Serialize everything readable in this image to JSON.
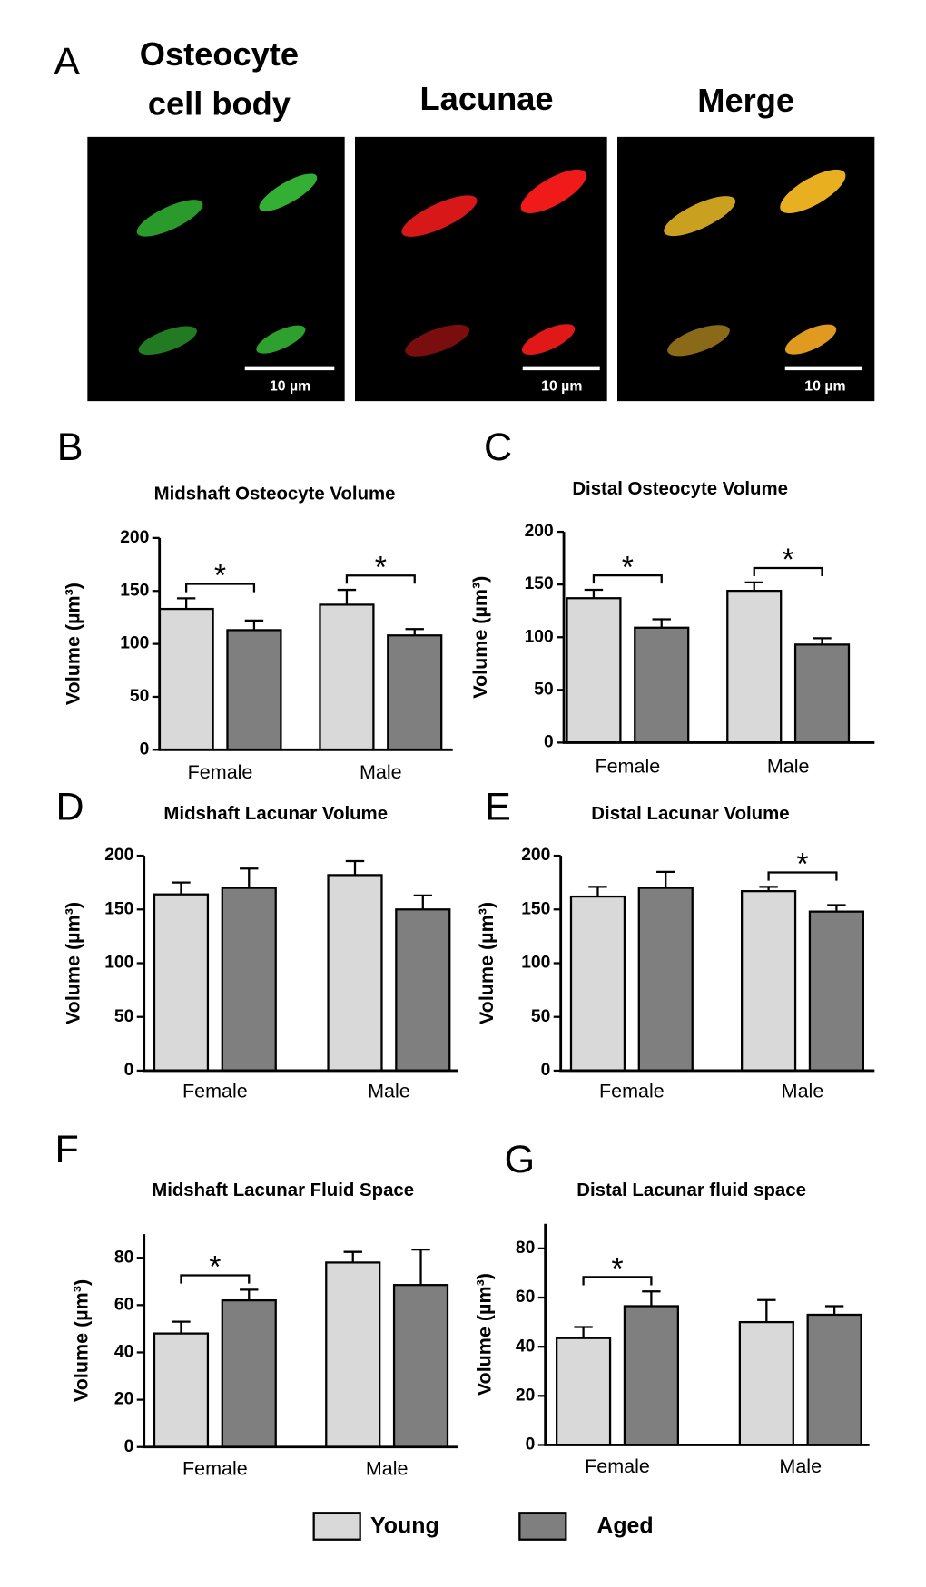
{
  "panel_a": {
    "label": "A",
    "headers": [
      [
        "Osteocyte",
        "cell body"
      ],
      [
        "Lacunae"
      ],
      [
        "Merge"
      ]
    ],
    "scale_bar": "10 µm"
  },
  "chart_data": [
    {
      "type": "bar",
      "panel_label": "B",
      "title": "Midshaft Osteocyte Volume",
      "y_label": "Volume (µm³)",
      "categories": [
        "Female",
        "Male"
      ],
      "series": [
        {
          "color": "#d9d9d9",
          "values": [
            133,
            137
          ],
          "errors": [
            10,
            14
          ]
        },
        {
          "color": "#7f7f7f",
          "values": [
            113,
            108
          ],
          "errors": [
            9,
            6
          ]
        }
      ],
      "significance": [
        "*",
        "*"
      ],
      "ylim": [
        0,
        200
      ],
      "yticks": [
        0,
        50,
        100,
        150,
        200
      ]
    },
    {
      "type": "bar",
      "panel_label": "C",
      "title": "Distal Osteocyte Volume",
      "y_label": "Volume (µm³)",
      "categories": [
        "Female",
        "Male"
      ],
      "series": [
        {
          "color": "#d9d9d9",
          "values": [
            137,
            144
          ],
          "errors": [
            8,
            8
          ]
        },
        {
          "color": "#7f7f7f",
          "values": [
            109,
            93
          ],
          "errors": [
            8,
            6
          ]
        }
      ],
      "significance": [
        "*",
        "*"
      ],
      "ylim": [
        0,
        200
      ],
      "yticks": [
        0,
        50,
        100,
        150,
        200
      ]
    },
    {
      "type": "bar",
      "panel_label": "D",
      "title": "Midshaft Lacunar Volume",
      "y_label": "Volume (µm³)",
      "categories": [
        "Female",
        "Male"
      ],
      "series": [
        {
          "color": "#d9d9d9",
          "values": [
            164,
            182
          ],
          "errors": [
            11,
            13
          ]
        },
        {
          "color": "#7f7f7f",
          "values": [
            170,
            150
          ],
          "errors": [
            18,
            13
          ]
        }
      ],
      "significance": [
        null,
        null
      ],
      "ylim": [
        0,
        200
      ],
      "yticks": [
        0,
        50,
        100,
        150,
        200
      ]
    },
    {
      "type": "bar",
      "panel_label": "E",
      "title": "Distal Lacunar Volume",
      "y_label": "Volume (µm³)",
      "categories": [
        "Female",
        "Male"
      ],
      "series": [
        {
          "color": "#d9d9d9",
          "values": [
            162,
            167
          ],
          "errors": [
            9,
            4
          ]
        },
        {
          "color": "#7f7f7f",
          "values": [
            170,
            148
          ],
          "errors": [
            15,
            6
          ]
        }
      ],
      "significance": [
        null,
        "*"
      ],
      "ylim": [
        0,
        200
      ],
      "yticks": [
        0,
        50,
        100,
        150,
        200
      ]
    },
    {
      "type": "bar",
      "panel_label": "F",
      "title": "Midshaft Lacunar Fluid Space",
      "y_label": "Volume (µm³)",
      "categories": [
        "Female",
        "Male"
      ],
      "series": [
        {
          "color": "#d9d9d9",
          "values": [
            48,
            78
          ],
          "errors": [
            5,
            4.5
          ]
        },
        {
          "color": "#7f7f7f",
          "values": [
            62,
            68.5
          ],
          "errors": [
            4.5,
            15
          ]
        }
      ],
      "significance": [
        "*",
        null
      ],
      "ylim": [
        0,
        90
      ],
      "yticks": [
        0,
        20,
        40,
        60,
        80
      ]
    },
    {
      "type": "bar",
      "panel_label": "G",
      "title": "Distal Lacunar fluid space",
      "y_label": "Volume (µm³)",
      "categories": [
        "Female",
        "Male"
      ],
      "series": [
        {
          "color": "#d9d9d9",
          "values": [
            43.5,
            50
          ],
          "errors": [
            4.5,
            9
          ]
        },
        {
          "color": "#7f7f7f",
          "values": [
            56.5,
            53
          ],
          "errors": [
            6,
            3.5
          ]
        }
      ],
      "significance": [
        "*",
        null
      ],
      "ylim": [
        0,
        90
      ],
      "yticks": [
        0,
        20,
        40,
        60,
        80
      ]
    }
  ],
  "legend": [
    {
      "name": "Young",
      "color": "#d9d9d9"
    },
    {
      "name": "Aged",
      "color": "#7f7f7f"
    }
  ]
}
